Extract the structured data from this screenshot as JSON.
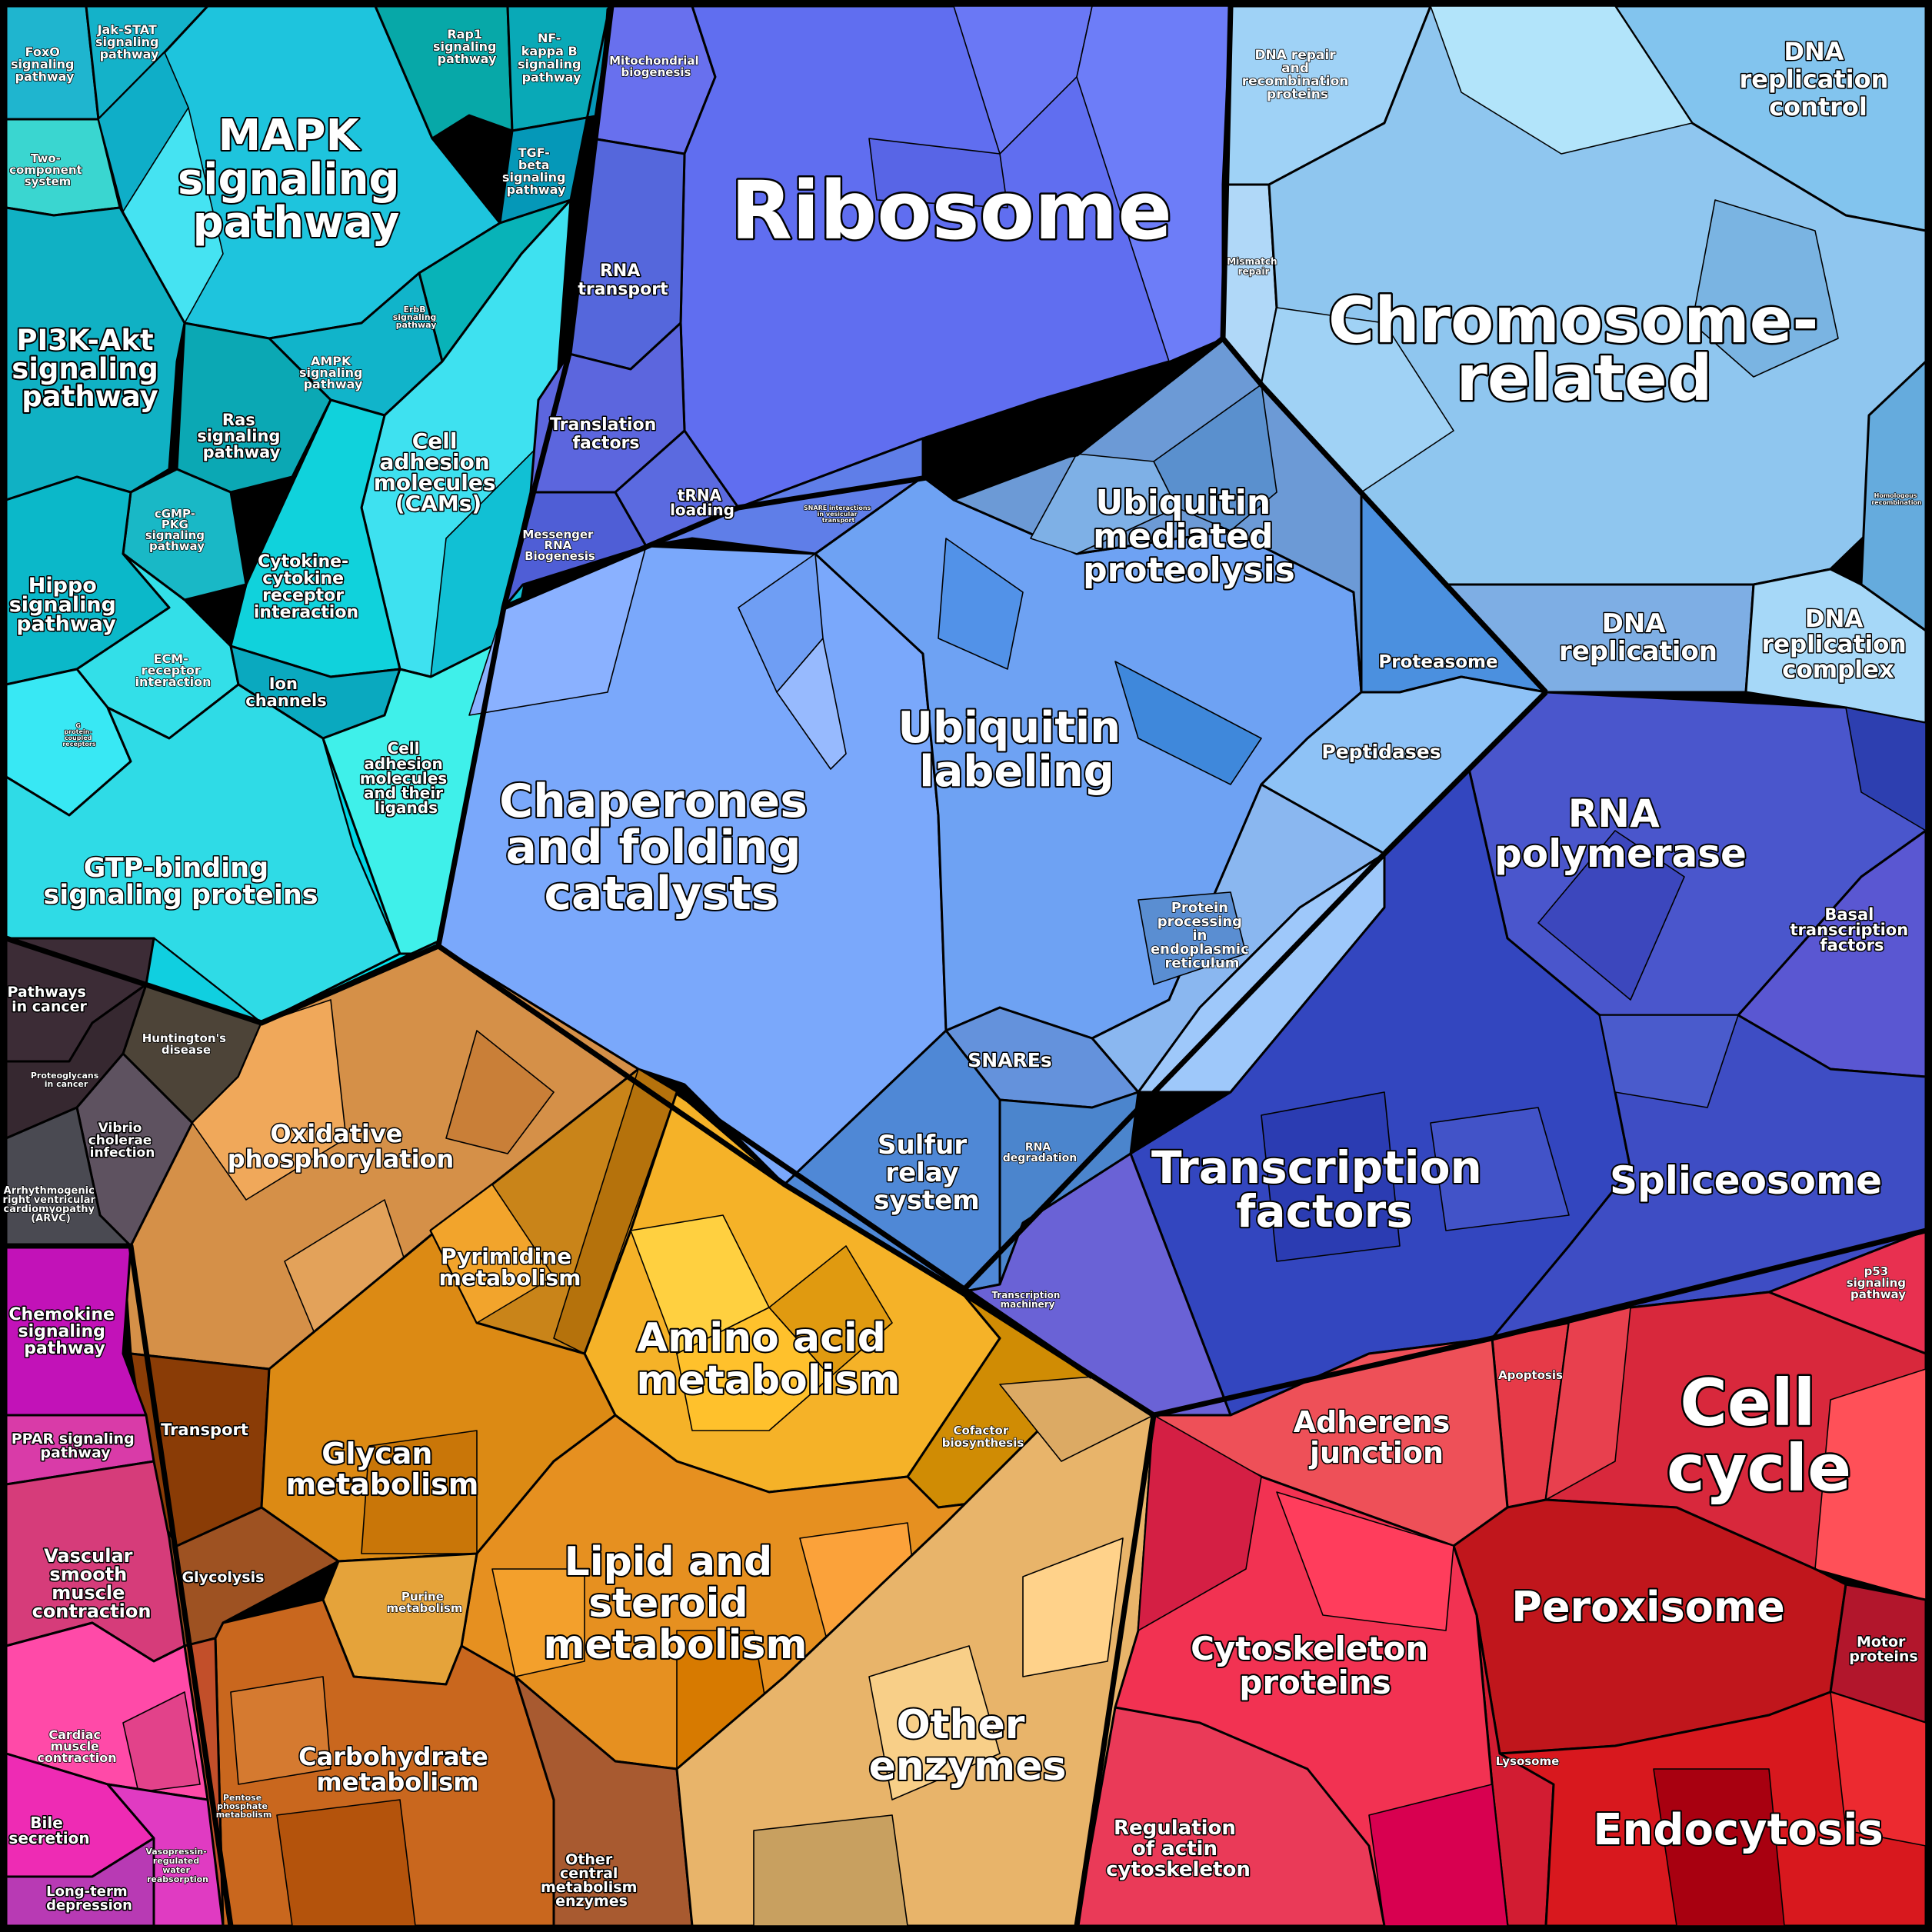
{
  "labels": {
    "ribosome": "Ribosome",
    "chromosome": [
      "Chromosome-",
      "related"
    ],
    "mapk": [
      "MAPK",
      "signaling",
      "pathway"
    ],
    "pi3k": [
      "PI3K-Akt",
      "signaling",
      "pathway"
    ],
    "hippo": [
      "Hippo",
      "signaling",
      "pathway"
    ],
    "gtp": [
      "GTP-binding",
      "signaling proteins"
    ],
    "cams": [
      "Cell",
      "adhesion",
      "molecules",
      "(CAMs)"
    ],
    "cytokine": [
      "Cytokine-",
      "cytokine",
      "receptor",
      "interaction"
    ],
    "ion": [
      "Ion",
      "channels"
    ],
    "ecm": [
      "ECM-",
      "receptor",
      "interaction"
    ],
    "celladh": [
      "Cell",
      "adhesion",
      "molecules",
      "and their",
      "ligands"
    ],
    "ras": [
      "Ras",
      "signaling",
      "pathway"
    ],
    "cgmp": [
      "cGMP-",
      "PKG",
      "signaling",
      "pathway"
    ],
    "ampk": [
      "AMPK",
      "signaling",
      "pathway"
    ],
    "erbb": [
      "ErbB",
      "signaling",
      "pathway"
    ],
    "foxo": [
      "FoxO",
      "signaling",
      "pathway"
    ],
    "jakstat": [
      "Jak-STAT",
      "signaling",
      "pathway"
    ],
    "twocomp": [
      "Two-",
      "component",
      "system"
    ],
    "rap1": [
      "Rap1",
      "signaling",
      "pathway"
    ],
    "nfkb": [
      "NF-",
      "kappa B",
      "signaling",
      "pathway"
    ],
    "tgfb": [
      "TGF-",
      "beta",
      "signaling",
      "pathway"
    ],
    "gprot": [
      "G",
      "protein-",
      "coupled",
      "receptors"
    ],
    "mito": [
      "Mitochondrial",
      "biogenesis"
    ],
    "rnatransport": [
      "RNA",
      "transport"
    ],
    "translation": [
      "Translation",
      "factors"
    ],
    "trna": [
      "tRNA",
      "loading"
    ],
    "mrna": [
      "Messenger",
      "RNA",
      "Biogenesis"
    ],
    "snarevt": [
      "SNARE interactions",
      "in vesicular",
      "transport"
    ],
    "dnarepair": [
      "DNA repair",
      "and",
      "recombination",
      "proteins"
    ],
    "mismatch": [
      "Mismatch",
      "repair"
    ],
    "dnarepcontrol": [
      "DNA",
      "replication",
      "control"
    ],
    "homrec": [
      "Homologous",
      "recombination"
    ],
    "dnarep": [
      "DNA",
      "replication"
    ],
    "dnarepcomplex": [
      "DNA",
      "replication",
      "complex"
    ],
    "ubmed": [
      "Ubiquitin",
      "mediated",
      "proteolysis"
    ],
    "proteasome": "Proteasome",
    "peptidases": "Peptidases",
    "ublab": [
      "Ubiquitin",
      "labeling"
    ],
    "chaperones": [
      "Chaperones",
      "and folding",
      "catalysts"
    ],
    "protproc": [
      "Protein",
      "processing",
      "in",
      "endoplasmic",
      "reticulum"
    ],
    "snares": "SNAREs",
    "sulfur": [
      "Sulfur",
      "relay",
      "system"
    ],
    "rnadeg": [
      "RNA",
      "degradation"
    ],
    "rnapol": [
      "RNA",
      "polymerase"
    ],
    "basal": [
      "Basal",
      "transcription",
      "factors"
    ],
    "tf": [
      "Transcription",
      "factors"
    ],
    "spliceosome": "Spliceosome",
    "transmach": [
      "Transcription",
      "machinery"
    ],
    "pathcancer": [
      "Pathways",
      "in cancer"
    ],
    "huntington": [
      "Huntington's",
      "disease"
    ],
    "proteoglycans": [
      "Proteoglycans",
      "in cancer"
    ],
    "vibrio": [
      "Vibrio",
      "cholerae",
      "infection"
    ],
    "arvc": [
      "Arrhythmogenic",
      "right ventricular",
      "cardiomyopathy",
      "(ARVC)"
    ],
    "oxphos": [
      "Oxidative",
      "phosphorylation"
    ],
    "pyrimidine": [
      "Pyrimidine",
      "metabolism"
    ],
    "aminoacid": [
      "Amino acid",
      "metabolism"
    ],
    "cofactor": [
      "Cofactor",
      "biosynthesis"
    ],
    "transport": "Transport",
    "glycan": [
      "Glycan",
      "metabolism"
    ],
    "lipid": [
      "Lipid and",
      "steroid",
      "metabolism"
    ],
    "glycolysis": "Glycolysis",
    "purine": [
      "Purine",
      "metabolism"
    ],
    "carbo": [
      "Carbohydrate",
      "metabolism"
    ],
    "pentose": [
      "Pentose",
      "phosphate",
      "metabolism"
    ],
    "othercentral": [
      "Other",
      "central",
      "metabolism",
      "enzymes"
    ],
    "otherenz": [
      "Other",
      "enzymes"
    ],
    "chemokine": [
      "Chemokine",
      "signaling",
      "pathway"
    ],
    "ppar": [
      "PPAR signaling",
      "pathway"
    ],
    "vascular": [
      "Vascular",
      "smooth",
      "muscle",
      "contraction"
    ],
    "cardiac": [
      "Cardiac",
      "muscle",
      "contraction"
    ],
    "bile": [
      "Bile",
      "secretion"
    ],
    "ltd": [
      "Long-term",
      "depression"
    ],
    "vasopressin": [
      "Vasopressin-",
      "regulated",
      "water",
      "reabsorption"
    ],
    "p53": [
      "p53",
      "signaling",
      "pathway"
    ],
    "apoptosis": "Apoptosis",
    "adherens": [
      "Adherens",
      "junction"
    ],
    "cellcycle": [
      "Cell",
      "cycle"
    ],
    "peroxisome": "Peroxisome",
    "motor": [
      "Motor",
      "proteins"
    ],
    "lysosome": "Lysosome",
    "endocytosis": "Endocytosis",
    "cytoskel": [
      "Cytoskeleton",
      "proteins"
    ],
    "regactin": [
      "Regulation",
      "of actin",
      "cytoskeleton"
    ]
  },
  "colors": {
    "signaling": "#0bbfd6",
    "ribosome": "#5f6ef0",
    "chromosome": "#8ac4ef",
    "proteins": "#6fa2f0",
    "transcription": "#3f4fc7",
    "metabolism": "#e19a2c",
    "disease": "#3a2f36",
    "magenta": "#d63fa3",
    "red": "#d6283f"
  }
}
